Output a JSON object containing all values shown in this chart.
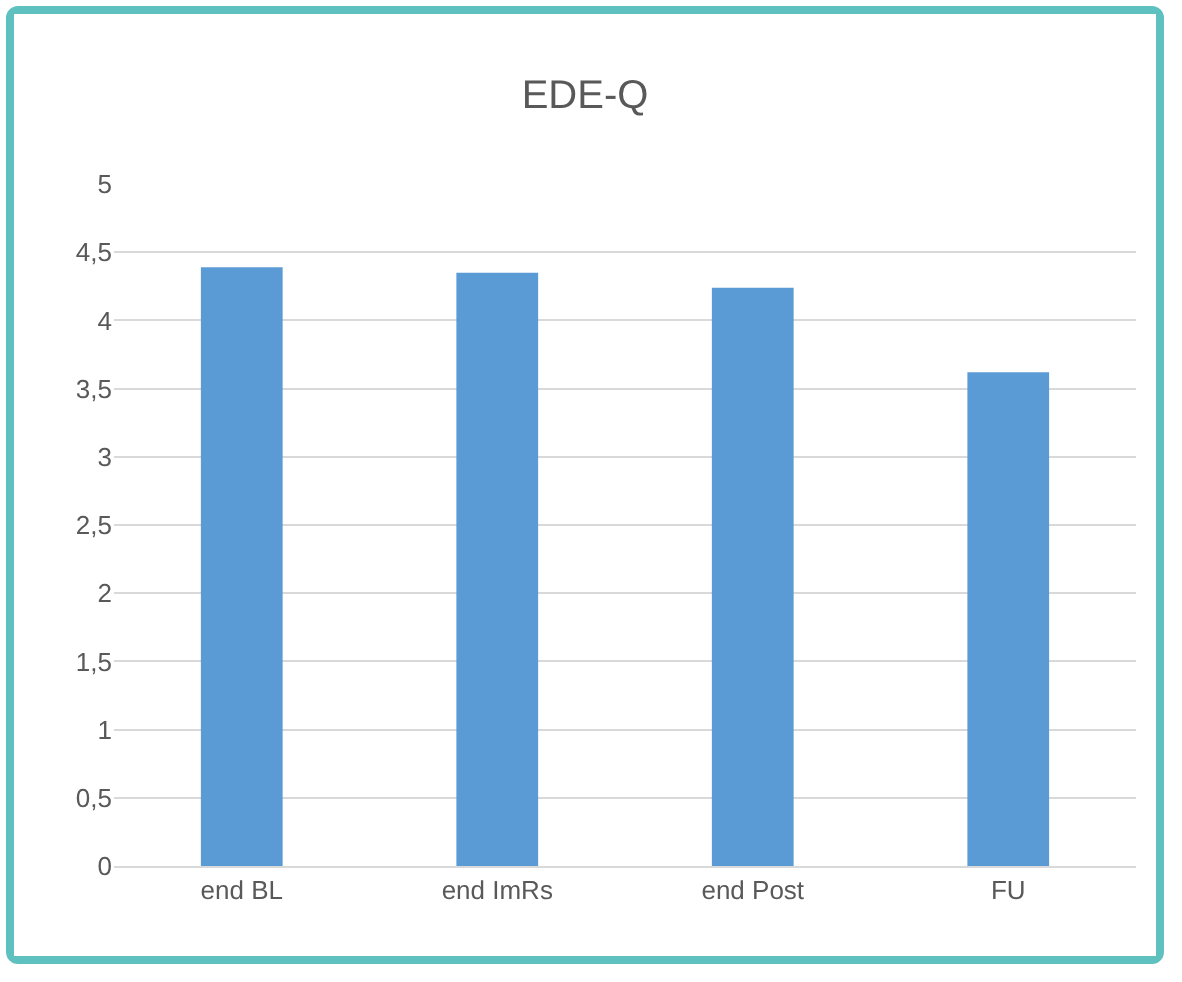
{
  "chart_data": {
    "type": "bar",
    "title": "EDE-Q",
    "categories": [
      "end BL",
      "end ImRs",
      "end Post",
      "FU"
    ],
    "values": [
      4.39,
      4.35,
      4.24,
      3.62
    ],
    "color": "#5b9bd5",
    "ylim": [
      0,
      5
    ],
    "yticks": [
      0,
      {
        "value": 0.5,
        "label": "0,5"
      },
      1,
      {
        "value": 1.5,
        "label": "1,5"
      },
      2,
      {
        "value": 2.5,
        "label": "2,5"
      },
      3,
      {
        "value": 3.5,
        "label": "3,5"
      },
      4,
      {
        "value": 4.5,
        "label": "4,5"
      },
      5
    ],
    "grid": "y"
  }
}
